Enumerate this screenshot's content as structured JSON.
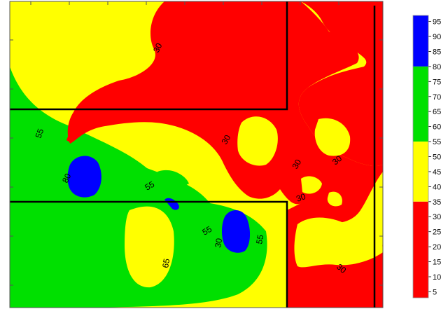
{
  "colors": {
    "band_5_35": "#ff0000",
    "band_35_55": "#ffff00",
    "band_55_80": "#00e000",
    "band_80_95": "#0000ff",
    "boundary": "#000000"
  },
  "legend": {
    "ticks": [
      "95",
      "90",
      "85",
      "80",
      "75",
      "70",
      "65",
      "60",
      "55",
      "50",
      "45",
      "40",
      "35",
      "30",
      "25",
      "20",
      "15",
      "10",
      "5"
    ],
    "bands": [
      {
        "from": 80,
        "to": 97,
        "color": "#0000ff"
      },
      {
        "from": 55,
        "to": 80,
        "color": "#00e000"
      },
      {
        "from": 35,
        "to": 55,
        "color": "#ffff00"
      },
      {
        "from": 3,
        "to": 35,
        "color": "#ff0000"
      }
    ],
    "min": 3,
    "max": 97
  },
  "contour_labels": [
    {
      "text": "30",
      "id": "top"
    },
    {
      "text": "55",
      "id": "left"
    },
    {
      "text": "30",
      "id": "mid-right"
    },
    {
      "text": "30",
      "id": "right-1"
    },
    {
      "text": "30",
      "id": "right-2"
    },
    {
      "text": "80",
      "id": "blue-left"
    },
    {
      "text": "55",
      "id": "center-1"
    },
    {
      "text": "30",
      "id": "right-3"
    },
    {
      "text": "55",
      "id": "center-2"
    },
    {
      "text": "30",
      "id": "blue-center"
    },
    {
      "text": "55",
      "id": "center-3"
    },
    {
      "text": "65",
      "id": "bottom"
    },
    {
      "text": "30",
      "id": "bottom-right"
    }
  ]
}
